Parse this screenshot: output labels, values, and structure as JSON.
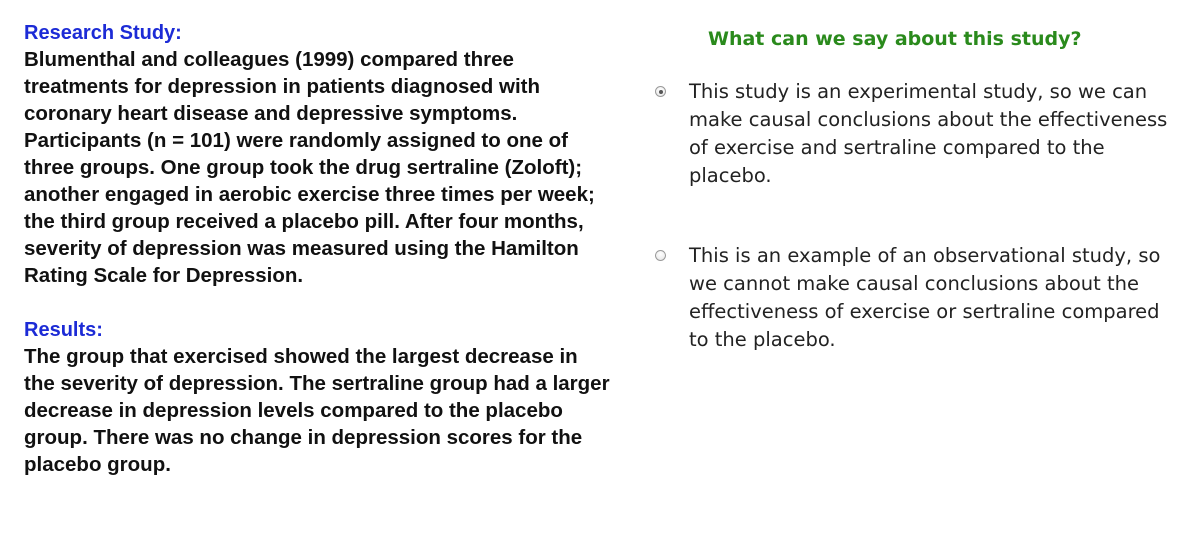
{
  "research": {
    "heading": "Research Study:",
    "body": "Blumenthal and colleagues (1999) compared three treatments for depression in patients diagnosed with coronary heart disease and depressive symptoms. Participants (n = 101) were randomly assigned to one of three groups. One group took the drug sertraline (Zoloft); another engaged in aerobic exercise three times per week; the third group received a placebo pill. After four months, severity of depression was measured using the Hamilton Rating Scale for Depression."
  },
  "results": {
    "heading": "Results:",
    "body": "The group that exercised showed the largest decrease in the severity of depression. The sertraline group had a larger decrease in depression levels compared to the placebo group. There was no change in depression scores for the placebo group."
  },
  "quiz": {
    "question": "What can we say about this study?",
    "options": [
      {
        "label": "This study is an experimental study, so we can make causal conclusions about the effectiveness of exercise and sertraline compared to the placebo.",
        "selected": true
      },
      {
        "label": "This is an example of an observational study, so we cannot make causal conclusions about the effectiveness of exercise or sertraline compared to the placebo.",
        "selected": false
      }
    ]
  },
  "colors": {
    "heading_blue": "#1c2bd6",
    "question_green": "#2a8a1c",
    "body_text": "#111111"
  }
}
